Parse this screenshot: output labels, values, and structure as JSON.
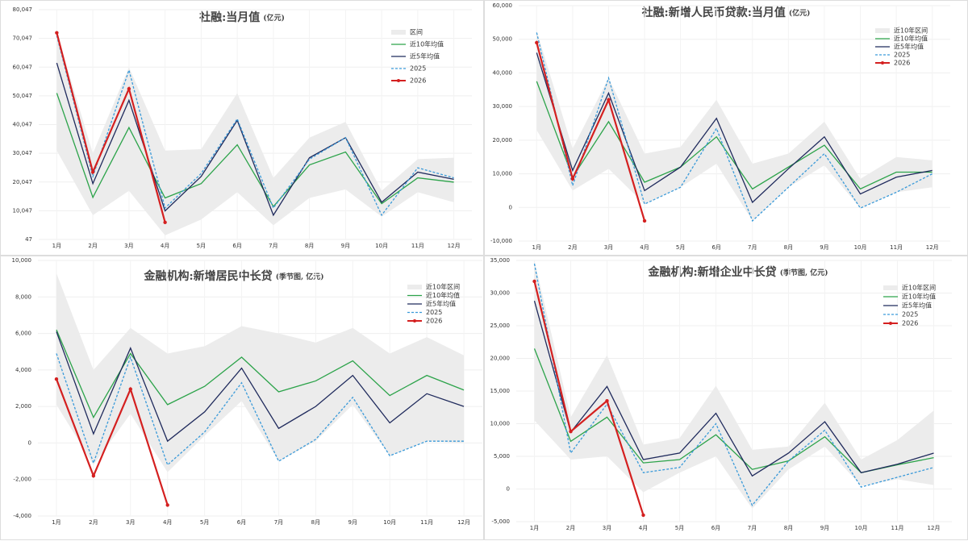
{
  "chart_data": [
    {
      "type": "line",
      "title": "社融:当月值",
      "unit": "(亿元)",
      "categories": [
        "1月",
        "2月",
        "3月",
        "4月",
        "5月",
        "6月",
        "7月",
        "8月",
        "9月",
        "10月",
        "11月",
        "12月"
      ],
      "ylim": [
        47,
        80047
      ],
      "yticks": [
        47,
        {
          "value": 10047,
          "label": "10,047"
        },
        {
          "value": 20047,
          "label": "20,047"
        },
        {
          "value": 30047,
          "label": "30,047"
        },
        {
          "value": 40047,
          "label": "40,047"
        },
        {
          "value": 50047,
          "label": "50,047"
        },
        {
          "value": 60047,
          "label": "60,047"
        },
        {
          "value": 70047,
          "label": "70,047"
        },
        {
          "value": 80047,
          "label": "80,047"
        }
      ],
      "grid": true,
      "series": [
        {
          "name": "区间",
          "color": "#ececec",
          "type": "band",
          "high": [
            72000,
            30000,
            60000,
            31000,
            31500,
            51000,
            21500,
            35500,
            41000,
            17000,
            28000,
            28500
          ],
          "low": [
            31000,
            8500,
            17000,
            1500,
            7000,
            16500,
            5000,
            14500,
            17500,
            8000,
            16500,
            13000
          ]
        },
        {
          "name": "近10年均值",
          "color": "#2ca34a",
          "values": [
            51000,
            14700,
            39000,
            14500,
            19500,
            33000,
            11500,
            26000,
            30500,
            12500,
            21500,
            20000
          ]
        },
        {
          "name": "近5年均值",
          "color": "#1f2a5c",
          "values": [
            61500,
            19500,
            48500,
            10000,
            22000,
            41500,
            8500,
            28500,
            35500,
            13000,
            23500,
            21000
          ]
        },
        {
          "name": "2025",
          "color": "#3a9ad9",
          "style": "dashed",
          "values": [
            71000,
            22000,
            59000,
            11000,
            23000,
            42000,
            11000,
            28000,
            35500,
            8500,
            25000,
            21500
          ]
        },
        {
          "name": "2026",
          "color": "#d42020",
          "marker": true,
          "values": [
            72000,
            23500,
            52500,
            6000,
            null,
            null,
            null,
            null,
            null,
            null,
            null,
            null
          ]
        }
      ]
    },
    {
      "type": "line",
      "title": "社融:新增人民币贷款:当月值",
      "unit": "(亿元)",
      "categories": [
        "1月",
        "2月",
        "3月",
        "4月",
        "5月",
        "6月",
        "7月",
        "8月",
        "9月",
        "10月",
        "11月",
        "12月"
      ],
      "ylim": [
        -10000,
        60000
      ],
      "yticks": [
        {
          "value": -10000,
          "label": "-10,000"
        },
        0,
        {
          "value": 10000,
          "label": "10,000"
        },
        {
          "value": 20000,
          "label": "20,000"
        },
        {
          "value": 30000,
          "label": "30,000"
        },
        {
          "value": 40000,
          "label": "40,000"
        },
        {
          "value": 50000,
          "label": "50,000"
        },
        {
          "value": 60000,
          "label": "60,000"
        }
      ],
      "grid": true,
      "series": [
        {
          "name": "近10年区间",
          "color": "#ececec",
          "type": "band",
          "high": [
            52500,
            17500,
            38500,
            16000,
            18000,
            32000,
            13000,
            16000,
            25500,
            8500,
            15000,
            14000
          ],
          "low": [
            23000,
            5000,
            11500,
            1000,
            6000,
            13000,
            -4000,
            6000,
            12500,
            -200,
            4500,
            6000
          ]
        },
        {
          "name": "近10年均值",
          "color": "#2ca34a",
          "values": [
            37500,
            9000,
            25500,
            7500,
            12000,
            21000,
            5500,
            12000,
            18500,
            5500,
            10500,
            10500
          ]
        },
        {
          "name": "近5年均值",
          "color": "#1f2a5c",
          "values": [
            46000,
            11000,
            34000,
            5000,
            12000,
            26500,
            1500,
            11500,
            21000,
            4000,
            9000,
            11000
          ]
        },
        {
          "name": "2025",
          "color": "#3a9ad9",
          "style": "dashed",
          "values": [
            52000,
            6500,
            38500,
            1000,
            6000,
            23500,
            -4000,
            6000,
            16000,
            -200,
            4500,
            10000
          ]
        },
        {
          "name": "2026",
          "color": "#d42020",
          "marker": true,
          "values": [
            49000,
            8500,
            32000,
            -4000,
            null,
            null,
            null,
            null,
            null,
            null,
            null,
            null
          ]
        }
      ]
    },
    {
      "type": "line",
      "title": "金融机构:新增居民中长贷",
      "unit": "(季节图, 亿元)",
      "categories": [
        "1月",
        "2月",
        "3月",
        "4月",
        "5月",
        "6月",
        "7月",
        "8月",
        "9月",
        "10月",
        "11月",
        "12月"
      ],
      "ylim": [
        -4000,
        10000
      ],
      "yticks": [
        {
          "value": -4000,
          "label": "-4,000"
        },
        {
          "value": -2000,
          "label": "-2,000"
        },
        0,
        {
          "value": 2000,
          "label": "2,000"
        },
        {
          "value": 4000,
          "label": "4,000"
        },
        {
          "value": 6000,
          "label": "6,000"
        },
        {
          "value": 8000,
          "label": "8,000"
        },
        {
          "value": 10000,
          "label": "10,000"
        }
      ],
      "grid": true,
      "series": [
        {
          "name": "近10年区间",
          "color": "#ececec",
          "type": "band",
          "high": [
            9300,
            4000,
            6300,
            4900,
            5300,
            6400,
            6000,
            5500,
            6300,
            4900,
            5800,
            4800
          ],
          "low": [
            2100,
            -1200,
            1600,
            -1600,
            400,
            2300,
            -1000,
            100,
            2100,
            -700,
            100,
            0
          ]
        },
        {
          "name": "近10年均值",
          "color": "#2ca34a",
          "values": [
            6200,
            1400,
            4900,
            2100,
            3100,
            4700,
            2800,
            3400,
            4500,
            2600,
            3700,
            2900
          ]
        },
        {
          "name": "近5年均值",
          "color": "#1f2a5c",
          "values": [
            6100,
            500,
            5200,
            100,
            1700,
            4100,
            800,
            2000,
            3700,
            1100,
            2700,
            2000
          ]
        },
        {
          "name": "2025",
          "color": "#3a9ad9",
          "style": "dashed",
          "values": [
            4900,
            -1100,
            4700,
            -1200,
            600,
            3300,
            -1000,
            200,
            2500,
            -700,
            100,
            100
          ]
        },
        {
          "name": "2026",
          "color": "#d42020",
          "marker": true,
          "values": [
            3500,
            -1800,
            2950,
            -3400,
            null,
            null,
            null,
            null,
            null,
            null,
            null,
            null
          ]
        }
      ]
    },
    {
      "type": "line",
      "title": "金融机构:新增企业中长贷",
      "unit": "(季节图, 亿元)",
      "categories": [
        "1月",
        "2月",
        "3月",
        "4月",
        "5月",
        "6月",
        "7月",
        "8月",
        "9月",
        "10月",
        "11月",
        "12月"
      ],
      "ylim": [
        -5000,
        35000
      ],
      "yticks": [
        {
          "value": -5000,
          "label": "-5,000"
        },
        0,
        {
          "value": 5000,
          "label": "5,000"
        },
        {
          "value": 10000,
          "label": "10,000"
        },
        {
          "value": 15000,
          "label": "15,000"
        },
        {
          "value": 20000,
          "label": "20,000"
        },
        {
          "value": 25000,
          "label": "25,000"
        },
        {
          "value": 30000,
          "label": "30,000"
        },
        {
          "value": 35000,
          "label": "35,000"
        }
      ],
      "grid": true,
      "series": [
        {
          "name": "近10年区间",
          "color": "#ececec",
          "type": "band",
          "high": [
            35000,
            11000,
            20500,
            6800,
            7800,
            15800,
            6000,
            6500,
            13200,
            4500,
            7500,
            12000
          ],
          "low": [
            10500,
            4500,
            5000,
            -500,
            2500,
            5000,
            -3000,
            3000,
            6500,
            500,
            1500,
            600
          ]
        },
        {
          "name": "近10年均值",
          "color": "#2ca34a",
          "values": [
            21500,
            7300,
            11000,
            4000,
            4500,
            8300,
            3000,
            4300,
            8000,
            2500,
            3700,
            4800
          ]
        },
        {
          "name": "近5年均值",
          "color": "#1f2a5c",
          "values": [
            28800,
            8700,
            15700,
            4500,
            5500,
            11600,
            2000,
            5500,
            10300,
            2500,
            3800,
            5500
          ]
        },
        {
          "name": "2025",
          "color": "#3a9ad9",
          "style": "dashed",
          "values": [
            34500,
            5500,
            13000,
            2500,
            3300,
            10000,
            -2500,
            4300,
            9000,
            300,
            1800,
            3300
          ]
        },
        {
          "name": "2026",
          "color": "#d42020",
          "marker": true,
          "values": [
            31800,
            8800,
            13500,
            -4000,
            null,
            null,
            null,
            null,
            null,
            null,
            null,
            null
          ]
        }
      ]
    }
  ]
}
